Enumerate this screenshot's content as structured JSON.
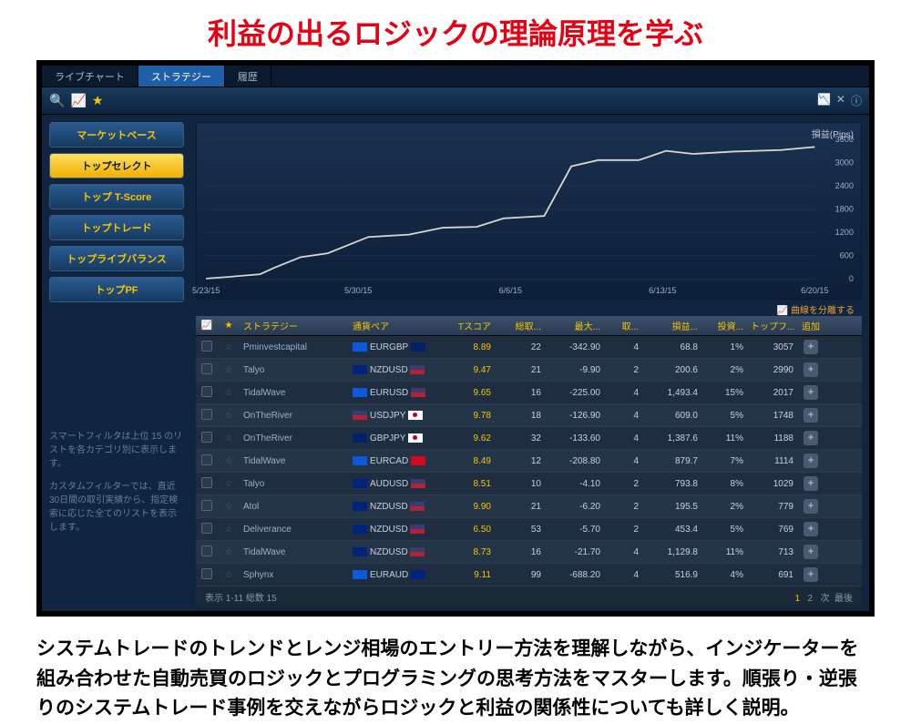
{
  "title": "利益の出るロジックの理論原理を学ぶ",
  "tabs": {
    "t0": "ライブチャート",
    "t1": "ストラテジー",
    "t2": "履歴"
  },
  "chart": {
    "ylabel": "損益(Pips)",
    "xticks": [
      "5/23/15",
      "5/30/15",
      "6/6/15",
      "6/13/15",
      "6/20/15"
    ],
    "yticks": [
      "3600",
      "3000",
      "2400",
      "1800",
      "1200",
      "600",
      "0"
    ],
    "footer": "曲線を分離する",
    "line_color": "#d8d8d0",
    "grid_color": "#223a58",
    "points": [
      [
        0,
        8
      ],
      [
        40,
        60
      ],
      [
        80,
        120
      ],
      [
        100,
        280
      ],
      [
        140,
        560
      ],
      [
        180,
        660
      ],
      [
        240,
        1080
      ],
      [
        300,
        1140
      ],
      [
        350,
        1320
      ],
      [
        400,
        1340
      ],
      [
        440,
        1560
      ],
      [
        500,
        1620
      ],
      [
        540,
        2900
      ],
      [
        580,
        3060
      ],
      [
        640,
        3060
      ],
      [
        680,
        3300
      ],
      [
        720,
        3220
      ],
      [
        780,
        3280
      ],
      [
        850,
        3320
      ],
      [
        900,
        3400
      ]
    ]
  },
  "sidebar": {
    "b0": "マーケットベース",
    "b1": "トップセレクト",
    "b2": "トップ T-Score",
    "b3": "トップトレード",
    "b4": "トップライブバランス",
    "b5": "トップPF",
    "info1": "スマートフィルタは上位 15 のリストを各カテゴリ別に表示します。",
    "info2": "カスタムフィルターでは、直近30日間の取引実績から、指定検索に応じた全てのリストを表示します。"
  },
  "cols": {
    "strat": "ストラテジー",
    "pair": "通貨ペア",
    "tscore": "Tスコア",
    "c1": "総取...",
    "c2": "最大...",
    "c3": "取...",
    "c4": "損益...",
    "c5": "投資...",
    "c6": "トップフ...",
    "c7": "追加"
  },
  "rows": [
    {
      "s": "Pminvestcapital",
      "p": "EURGBP",
      "f1": "blue",
      "f2": "uk",
      "t": "8.89",
      "v1": "22",
      "v2": "-342.90",
      "v3": "4",
      "v4": "68.8",
      "v5": "1%",
      "v6": "3057"
    },
    {
      "s": "Talyo",
      "p": "NZDUSD",
      "f1": "dn",
      "f2": "us",
      "t": "9.47",
      "v1": "21",
      "v2": "-9.90",
      "v3": "2",
      "v4": "200.6",
      "v5": "2%",
      "v6": "2990"
    },
    {
      "s": "TidalWave",
      "p": "EURUSD",
      "f1": "blue",
      "f2": "us",
      "t": "9.65",
      "v1": "16",
      "v2": "-225.00",
      "v3": "4",
      "v4": "1,493.4",
      "v5": "15%",
      "v6": "2017"
    },
    {
      "s": "OnTheRiver",
      "p": "USDJPY",
      "f1": "us",
      "f2": "jp",
      "t": "9.78",
      "v1": "18",
      "v2": "-126.90",
      "v3": "4",
      "v4": "609.0",
      "v5": "5%",
      "v6": "1748"
    },
    {
      "s": "OnTheRiver",
      "p": "GBPJPY",
      "f1": "uk",
      "f2": "jp",
      "t": "9.62",
      "v1": "32",
      "v2": "-133.60",
      "v3": "4",
      "v4": "1,387.6",
      "v5": "11%",
      "v6": "1188"
    },
    {
      "s": "TidalWave",
      "p": "EURCAD",
      "f1": "blue",
      "f2": "ca",
      "t": "8.49",
      "v1": "12",
      "v2": "-208.80",
      "v3": "4",
      "v4": "879.7",
      "v5": "7%",
      "v6": "1114"
    },
    {
      "s": "Talyo",
      "p": "AUDUSD",
      "f1": "dn",
      "f2": "us",
      "t": "8.51",
      "v1": "10",
      "v2": "-4.10",
      "v3": "2",
      "v4": "793.8",
      "v5": "8%",
      "v6": "1029"
    },
    {
      "s": "Atol",
      "p": "NZDUSD",
      "f1": "dn",
      "f2": "us",
      "t": "9.90",
      "v1": "21",
      "v2": "-6.20",
      "v3": "2",
      "v4": "195.5",
      "v5": "2%",
      "v6": "779"
    },
    {
      "s": "Deliverance",
      "p": "NZDUSD",
      "f1": "dn",
      "f2": "us",
      "t": "6.50",
      "v1": "53",
      "v2": "-5.70",
      "v3": "2",
      "v4": "453.4",
      "v5": "5%",
      "v6": "769"
    },
    {
      "s": "TidalWave",
      "p": "NZDUSD",
      "f1": "dn",
      "f2": "us",
      "t": "8.73",
      "v1": "16",
      "v2": "-21.70",
      "v3": "4",
      "v4": "1,129.8",
      "v5": "11%",
      "v6": "713"
    },
    {
      "s": "Sphynx",
      "p": "EURAUD",
      "f1": "blue",
      "f2": "dn",
      "t": "9.11",
      "v1": "99",
      "v2": "-688.20",
      "v3": "4",
      "v4": "516.9",
      "v5": "4%",
      "v6": "691"
    }
  ],
  "footer": {
    "left": "表示 1-11 総数 15",
    "p1": "1",
    "p2": "2",
    "p3": "次",
    "p4": "最後"
  },
  "desc": "システムトレードのトレンドとレンジ相場のエントリー方法を理解しながら、インジケーターを組み合わせた自動売買のロジックとプログラミングの思考方法をマスターします。順張り・逆張りのシステムトレード事例を交えながらロジックと利益の関係性についても詳しく説明。"
}
